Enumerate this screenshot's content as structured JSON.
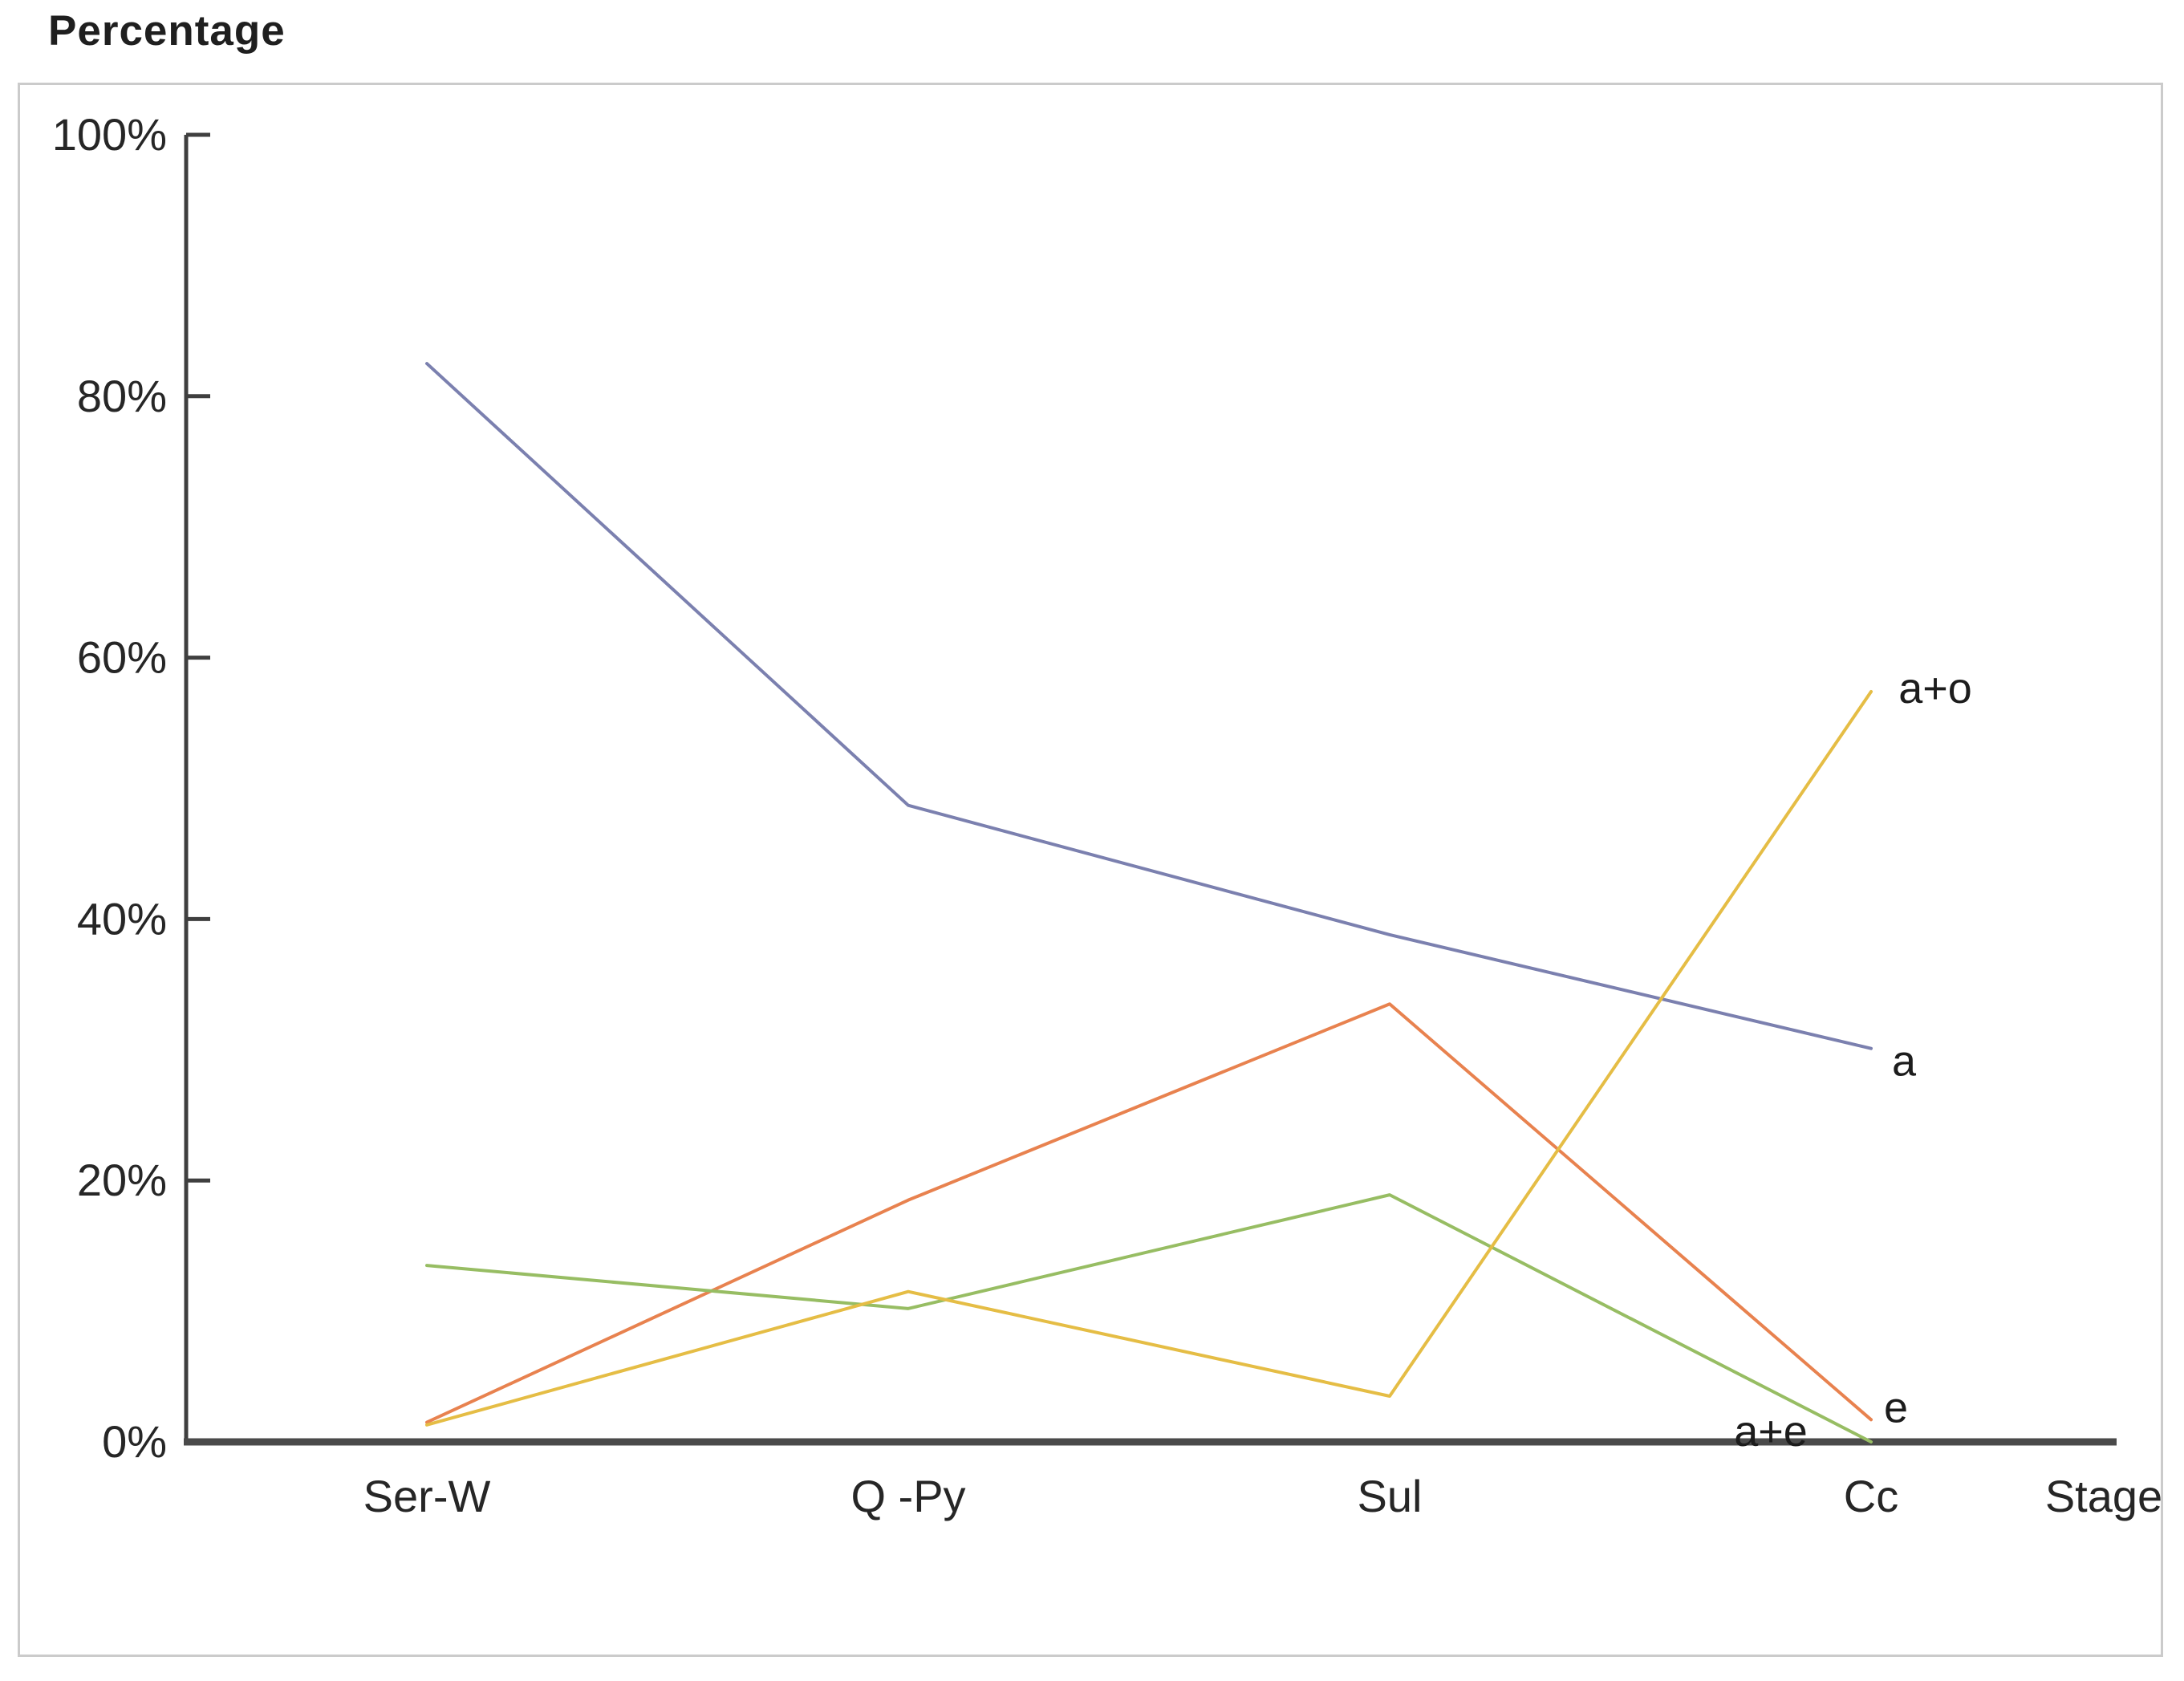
{
  "chart_data": {
    "type": "line",
    "title": "Percentage",
    "ylabel": "Percentage",
    "xlabel": "Stage",
    "categories": [
      "Ser-W",
      "Q -Py",
      "Sul",
      "Cc"
    ],
    "xaxis_end_label": "Stage",
    "ylim": [
      0,
      100
    ],
    "grid": false,
    "legend": "inline-end-labels",
    "y_ticks": [
      {
        "label": "100%",
        "value": 100
      },
      {
        "label": "80%",
        "value": 80
      },
      {
        "label": "60%",
        "value": 60
      },
      {
        "label": "40%",
        "value": 40
      },
      {
        "label": "20%",
        "value": 20
      },
      {
        "label": "0%",
        "value": 0
      }
    ],
    "series": [
      {
        "name": "a",
        "color": "#7b80af",
        "values": [
          82.5,
          48.7,
          38.8,
          30.1
        ],
        "label_dx": 41,
        "label_dy": 34
      },
      {
        "name": "e",
        "color": "#e8824f",
        "values": [
          1.5,
          18.5,
          33.5,
          1.7
        ],
        "label_dx": 31,
        "label_dy": 3
      },
      {
        "name": "a+e",
        "color": "#97bd63",
        "values": [
          13.5,
          10.2,
          18.9,
          0
        ],
        "label_dx": -125,
        "label_dy": 5
      },
      {
        "name": "a+o",
        "color": "#e5bd45",
        "values": [
          1.3,
          11.5,
          3.5,
          57.4
        ],
        "label_dx": 80,
        "label_dy": 14
      }
    ],
    "axis_colors": {
      "y_axis": "#3f3f3f",
      "x_axis": "#4a4a4a",
      "tick": "#3f3f3f",
      "text": "#262626"
    }
  }
}
